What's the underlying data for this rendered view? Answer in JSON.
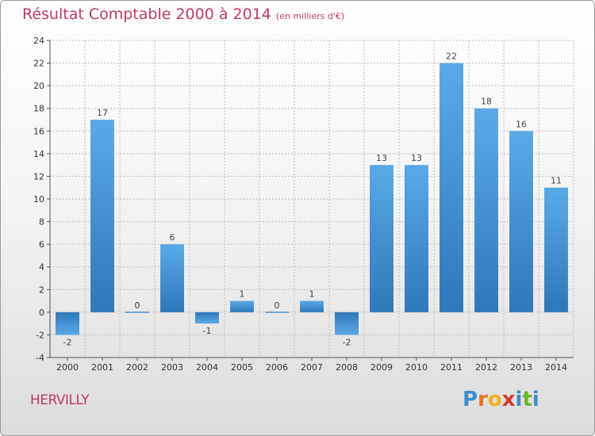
{
  "header": {
    "title": "Résultat Comptable 2000 à 2014",
    "subtitle": "(en milliers d'€)"
  },
  "commune": "HERVILLY",
  "logo": {
    "text": "Proxiti",
    "letters": [
      {
        "ch": "P",
        "color": "#3a8fd0"
      },
      {
        "ch": "r",
        "color": "#e8731c"
      },
      {
        "ch": "o",
        "color": "#f2b418"
      },
      {
        "ch": "x",
        "color": "#d23a2a"
      },
      {
        "ch": "i",
        "color": "#3a8fd0"
      },
      {
        "ch": "t",
        "color": "#6ab42d"
      },
      {
        "ch": "i",
        "color": "#3a8fd0"
      }
    ]
  },
  "colors": {
    "bar_top": "#5aa9e6",
    "bar_bottom": "#2f78b8",
    "title": "#c0396b",
    "grid": "#bdbdbd"
  },
  "chart_data": {
    "type": "bar",
    "title": "Résultat Comptable 2000 à 2014",
    "subtitle": "(en milliers d'€)",
    "xlabel": "",
    "ylabel": "",
    "categories": [
      "2000",
      "2001",
      "2002",
      "2003",
      "2004",
      "2005",
      "2006",
      "2007",
      "2008",
      "2009",
      "2010",
      "2011",
      "2012",
      "2013",
      "2014"
    ],
    "values": [
      -2,
      17,
      0,
      6,
      -1,
      1,
      0,
      1,
      -2,
      13,
      13,
      22,
      18,
      16,
      11
    ],
    "ylim": [
      -4,
      24
    ],
    "yticks": [
      -4,
      -2,
      0,
      2,
      4,
      6,
      8,
      10,
      12,
      14,
      16,
      18,
      20,
      22,
      24
    ],
    "grid": true
  }
}
